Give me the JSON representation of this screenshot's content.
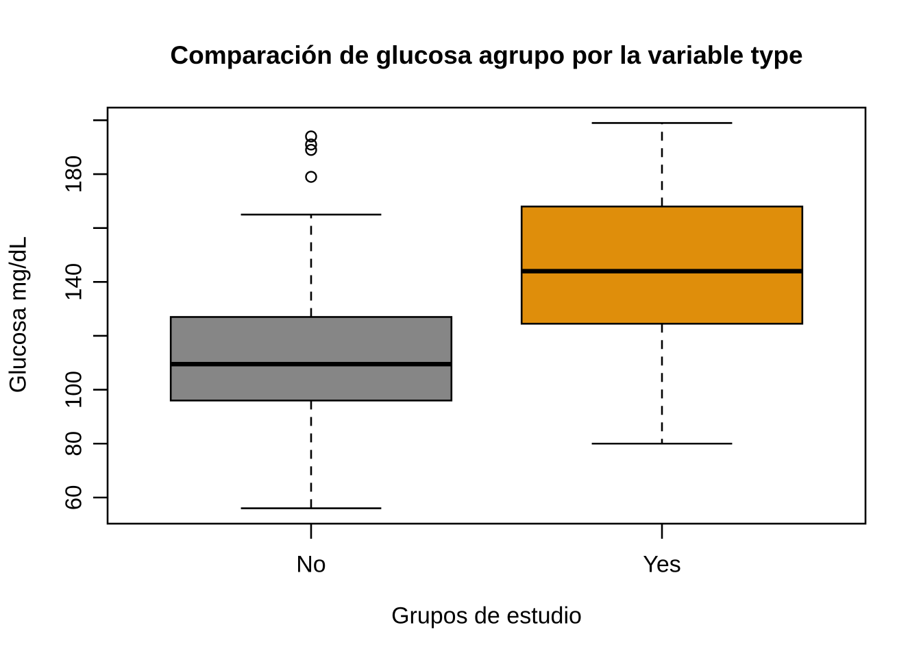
{
  "chart_data": {
    "type": "boxplot",
    "title": "Comparación de glucosa agrupo por la variable type",
    "xlabel": "Grupos de estudio",
    "ylabel": "Glucosa mg/dL",
    "categories": [
      "No",
      "Yes"
    ],
    "positions": [
      1,
      2
    ],
    "xlim": [
      0.42,
      2.58
    ],
    "ylim": [
      50.3,
      204.7
    ],
    "yticks": [
      60,
      80,
      100,
      120,
      140,
      160,
      180,
      200
    ],
    "ytick_labels": [
      60,
      80,
      100,
      140,
      180
    ],
    "grid": false,
    "legend": "none",
    "box_width": 0.8,
    "cap_width": 0.4,
    "series": [
      {
        "name": "No",
        "fill": "#868686",
        "lower_whisker": 56,
        "q1": 96,
        "median": 109.5,
        "q3": 127,
        "upper_whisker": 165,
        "outliers": [
          179,
          189,
          191,
          194
        ]
      },
      {
        "name": "Yes",
        "fill": "#DF8E0B",
        "lower_whisker": 80,
        "q1": 124.5,
        "median": 144,
        "q3": 168,
        "upper_whisker": 199,
        "outliers": []
      }
    ],
    "colors": {
      "stroke": "#000000",
      "background": "#FFFFFF"
    }
  }
}
